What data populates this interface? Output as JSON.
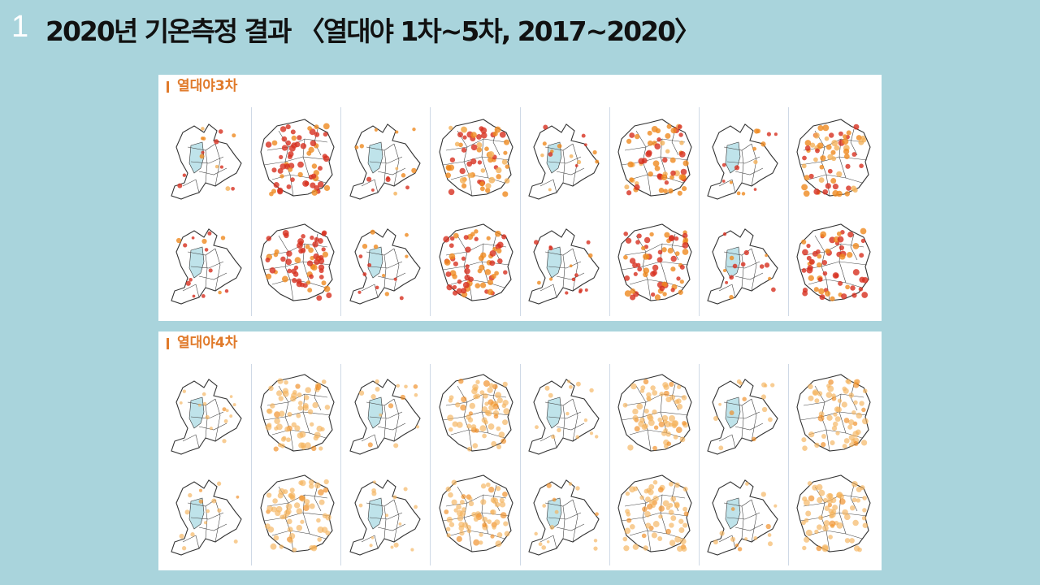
{
  "slide_number": "1",
  "title": "2020년 기온측정 결과 〈열대야 1차~5차, 2017~2020〉",
  "panels": [
    {
      "label": "열대야3차",
      "accent": "#e07a2a"
    },
    {
      "label": "열대야4차",
      "accent": "#e07a2a"
    }
  ],
  "colors": {
    "background": "#a9d4dc",
    "panel": "#ffffff",
    "highlight_district": "#bfe3ea",
    "dot_hot": "#d7301f",
    "dot_warm": "#ef8a1f",
    "dot_mild": "#f4b25a"
  },
  "map_icon": "district-map"
}
